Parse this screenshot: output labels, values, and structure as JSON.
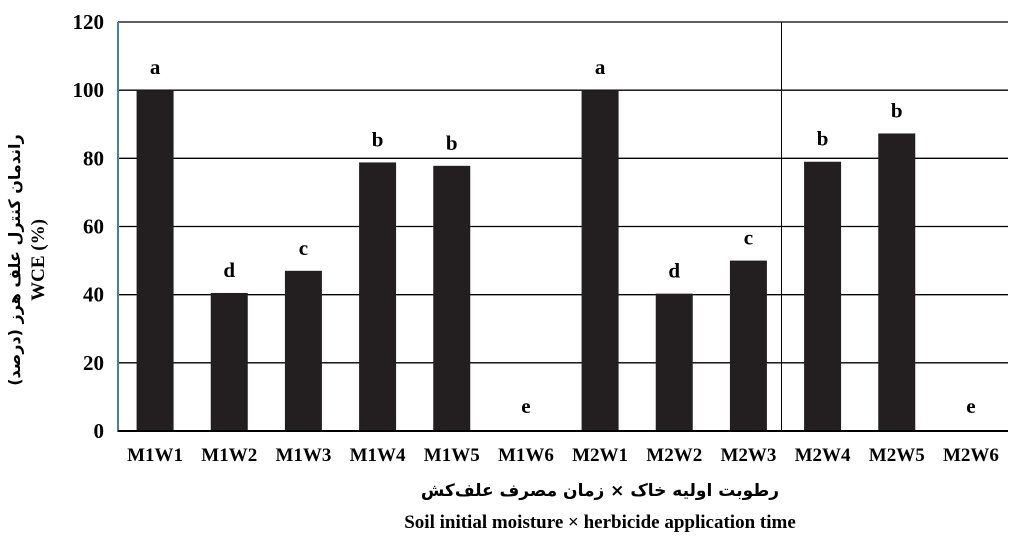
{
  "chart_data": {
    "type": "bar",
    "categories": [
      "M1W1",
      "M1W2",
      "M1W3",
      "M1W4",
      "M1W5",
      "M1W6",
      "M2W1",
      "M2W2",
      "M2W3",
      "M2W4",
      "M2W5",
      "M2W6"
    ],
    "values": [
      100,
      40.5,
      47,
      78.8,
      77.8,
      0,
      100,
      40.3,
      50,
      79,
      87.3,
      0
    ],
    "letters": [
      "a",
      "d",
      "c",
      "b",
      "b",
      "e",
      "a",
      "d",
      "c",
      "b",
      "b",
      "e"
    ],
    "ylim": [
      0,
      120
    ],
    "yticks": [
      "0",
      "20",
      "40",
      "60",
      "80",
      "100",
      "120"
    ],
    "xlabel_fa": "رطوبت اولیه خاک × زمان مصرف علف‌کش",
    "xlabel_en": "Soil initial moisture × herbicide application time",
    "ylabel_fa": "راندمان کنترل علف هرز (درصد)",
    "ylabel_en": "WCE (%)",
    "grid": true,
    "bar_color": "#231f20",
    "axis_color": "#4a7ab0"
  }
}
